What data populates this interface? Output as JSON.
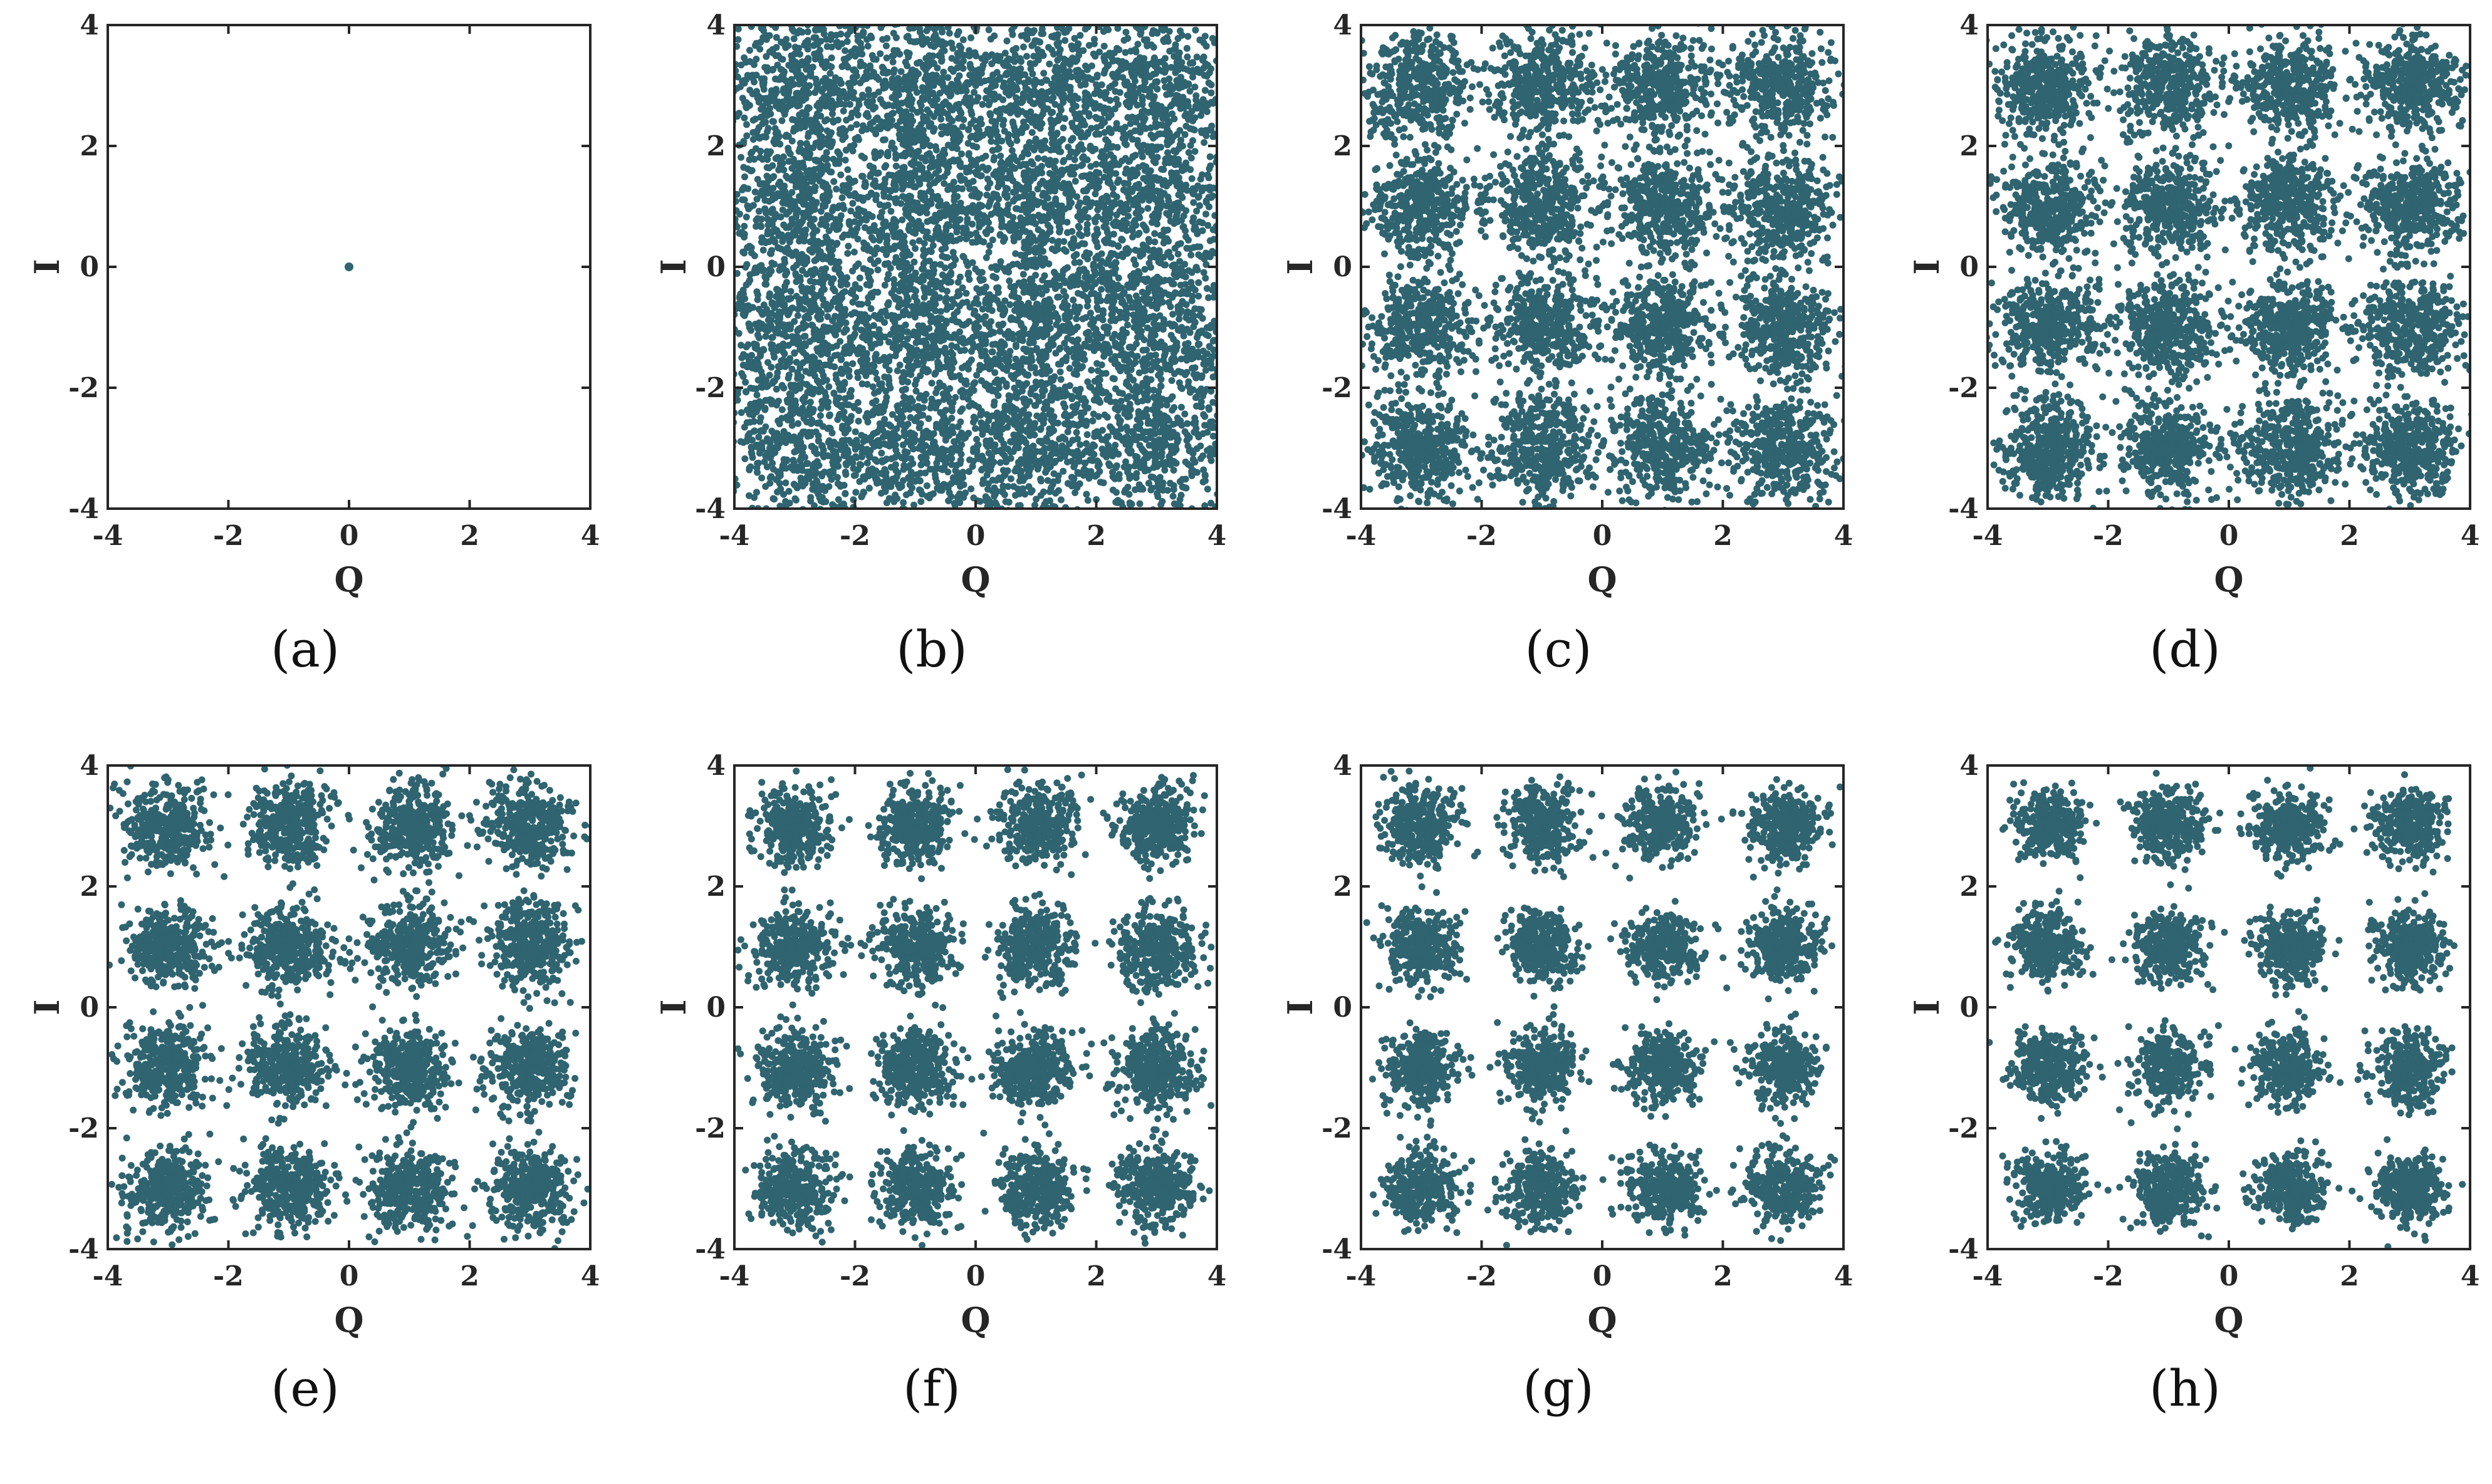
{
  "figure": {
    "marker_color": "#2f6470",
    "frame_color": "#262626"
  },
  "chart_data": [
    {
      "panel": "(a)",
      "type": "scatter",
      "xlabel": "Q",
      "ylabel": "I",
      "xlim": [
        -4,
        4
      ],
      "ylim": [
        -4,
        4
      ],
      "xticks": [
        "-4",
        "-2",
        "0",
        "2",
        "4"
      ],
      "yticks": [
        "4",
        "2",
        "0",
        "-2",
        "-4"
      ],
      "constellation": "single point",
      "centers": [
        [
          0,
          0
        ]
      ],
      "noise_std": 0,
      "points_per_cluster": 1
    },
    {
      "panel": "(b)",
      "type": "scatter",
      "xlabel": "Q",
      "ylabel": "I",
      "xlim": [
        -4,
        4
      ],
      "ylim": [
        -4,
        4
      ],
      "xticks": [
        "-4",
        "-2",
        "0",
        "2",
        "4"
      ],
      "yticks": [
        "4",
        "2",
        "0",
        "-2",
        "-4"
      ],
      "constellation": "16-QAM",
      "centers": [
        [
          -3,
          3
        ],
        [
          -1,
          3
        ],
        [
          1,
          3
        ],
        [
          3,
          3
        ],
        [
          -3,
          1
        ],
        [
          -1,
          1
        ],
        [
          1,
          1
        ],
        [
          3,
          1
        ],
        [
          -3,
          -1
        ],
        [
          -1,
          -1
        ],
        [
          1,
          -1
        ],
        [
          3,
          -1
        ],
        [
          -3,
          -3
        ],
        [
          -1,
          -3
        ],
        [
          1,
          -3
        ],
        [
          3,
          -3
        ]
      ],
      "noise_std": 0.7,
      "points_per_cluster": 520
    },
    {
      "panel": "(c)",
      "type": "scatter",
      "xlabel": "Q",
      "ylabel": "I",
      "xlim": [
        -4,
        4
      ],
      "ylim": [
        -4,
        4
      ],
      "xticks": [
        "-4",
        "-2",
        "0",
        "2",
        "4"
      ],
      "yticks": [
        "4",
        "2",
        "0",
        "-2",
        "-4"
      ],
      "constellation": "16-QAM",
      "centers": [
        [
          -3,
          3
        ],
        [
          -1,
          3
        ],
        [
          1,
          3
        ],
        [
          3,
          3
        ],
        [
          -3,
          1
        ],
        [
          -1,
          1
        ],
        [
          1,
          1
        ],
        [
          3,
          1
        ],
        [
          -3,
          -1
        ],
        [
          -1,
          -1
        ],
        [
          1,
          -1
        ],
        [
          3,
          -1
        ],
        [
          -3,
          -3
        ],
        [
          -1,
          -3
        ],
        [
          1,
          -3
        ],
        [
          3,
          -3
        ]
      ],
      "noise_std": 0.43,
      "points_per_cluster": 420
    },
    {
      "panel": "(d)",
      "type": "scatter",
      "xlabel": "Q",
      "ylabel": "I",
      "xlim": [
        -4,
        4
      ],
      "ylim": [
        -4,
        4
      ],
      "xticks": [
        "-4",
        "-2",
        "0",
        "2",
        "4"
      ],
      "yticks": [
        "4",
        "2",
        "0",
        "-2",
        "-4"
      ],
      "constellation": "16-QAM",
      "centers": [
        [
          -3,
          3
        ],
        [
          -1,
          3
        ],
        [
          1,
          3
        ],
        [
          3,
          3
        ],
        [
          -3,
          1
        ],
        [
          -1,
          1
        ],
        [
          1,
          1
        ],
        [
          3,
          1
        ],
        [
          -3,
          -1
        ],
        [
          -1,
          -1
        ],
        [
          1,
          -1
        ],
        [
          3,
          -1
        ],
        [
          -3,
          -3
        ],
        [
          -1,
          -3
        ],
        [
          1,
          -3
        ],
        [
          3,
          -3
        ]
      ],
      "noise_std": 0.4,
      "points_per_cluster": 420
    },
    {
      "panel": "(e)",
      "type": "scatter",
      "xlabel": "Q",
      "ylabel": "I",
      "xlim": [
        -4,
        4
      ],
      "ylim": [
        -4,
        4
      ],
      "xticks": [
        "-4",
        "-2",
        "0",
        "2",
        "4"
      ],
      "yticks": [
        "4",
        "2",
        "0",
        "-2",
        "-4"
      ],
      "constellation": "16-QAM",
      "centers": [
        [
          -3,
          3
        ],
        [
          -1,
          3
        ],
        [
          1,
          3
        ],
        [
          3,
          3
        ],
        [
          -3,
          1
        ],
        [
          -1,
          1
        ],
        [
          1,
          1
        ],
        [
          3,
          1
        ],
        [
          -3,
          -1
        ],
        [
          -1,
          -1
        ],
        [
          1,
          -1
        ],
        [
          3,
          -1
        ],
        [
          -3,
          -3
        ],
        [
          -1,
          -3
        ],
        [
          1,
          -3
        ],
        [
          3,
          -3
        ]
      ],
      "noise_std": 0.34,
      "points_per_cluster": 360
    },
    {
      "panel": "(f)",
      "type": "scatter",
      "xlabel": "Q",
      "ylabel": "I",
      "xlim": [
        -4,
        4
      ],
      "ylim": [
        -4,
        4
      ],
      "xticks": [
        "-4",
        "-2",
        "0",
        "2",
        "4"
      ],
      "yticks": [
        "4",
        "2",
        "0",
        "-2",
        "-4"
      ],
      "constellation": "16-QAM",
      "centers": [
        [
          -3,
          3
        ],
        [
          -1,
          3
        ],
        [
          1,
          3
        ],
        [
          3,
          3
        ],
        [
          -3,
          1
        ],
        [
          -1,
          1
        ],
        [
          1,
          1
        ],
        [
          3,
          1
        ],
        [
          -3,
          -1
        ],
        [
          -1,
          -1
        ],
        [
          1,
          -1
        ],
        [
          3,
          -1
        ],
        [
          -3,
          -3
        ],
        [
          -1,
          -3
        ],
        [
          1,
          -3
        ],
        [
          3,
          -3
        ]
      ],
      "noise_std": 0.32,
      "points_per_cluster": 340
    },
    {
      "panel": "(g)",
      "type": "scatter",
      "xlabel": "Q",
      "ylabel": "I",
      "xlim": [
        -4,
        4
      ],
      "ylim": [
        -4,
        4
      ],
      "xticks": [
        "-4",
        "-2",
        "0",
        "2",
        "4"
      ],
      "yticks": [
        "4",
        "2",
        "0",
        "-2",
        "-4"
      ],
      "constellation": "16-QAM",
      "centers": [
        [
          -3,
          3
        ],
        [
          -1,
          3
        ],
        [
          1,
          3
        ],
        [
          3,
          3
        ],
        [
          -3,
          1
        ],
        [
          -1,
          1
        ],
        [
          1,
          1
        ],
        [
          3,
          1
        ],
        [
          -3,
          -1
        ],
        [
          -1,
          -1
        ],
        [
          1,
          -1
        ],
        [
          3,
          -1
        ],
        [
          -3,
          -3
        ],
        [
          -1,
          -3
        ],
        [
          1,
          -3
        ],
        [
          3,
          -3
        ]
      ],
      "noise_std": 0.3,
      "points_per_cluster": 320
    },
    {
      "panel": "(h)",
      "type": "scatter",
      "xlabel": "Q",
      "ylabel": "I",
      "xlim": [
        -4,
        4
      ],
      "ylim": [
        -4,
        4
      ],
      "xticks": [
        "-4",
        "-2",
        "0",
        "2",
        "4"
      ],
      "yticks": [
        "4",
        "2",
        "0",
        "-2",
        "-4"
      ],
      "constellation": "16-QAM",
      "centers": [
        [
          -3,
          3
        ],
        [
          -1,
          3
        ],
        [
          1,
          3
        ],
        [
          3,
          3
        ],
        [
          -3,
          1
        ],
        [
          -1,
          1
        ],
        [
          1,
          1
        ],
        [
          3,
          1
        ],
        [
          -3,
          -1
        ],
        [
          -1,
          -1
        ],
        [
          1,
          -1
        ],
        [
          3,
          -1
        ],
        [
          -3,
          -3
        ],
        [
          -1,
          -3
        ],
        [
          1,
          -3
        ],
        [
          3,
          -3
        ]
      ],
      "noise_std": 0.29,
      "points_per_cluster": 320
    }
  ]
}
